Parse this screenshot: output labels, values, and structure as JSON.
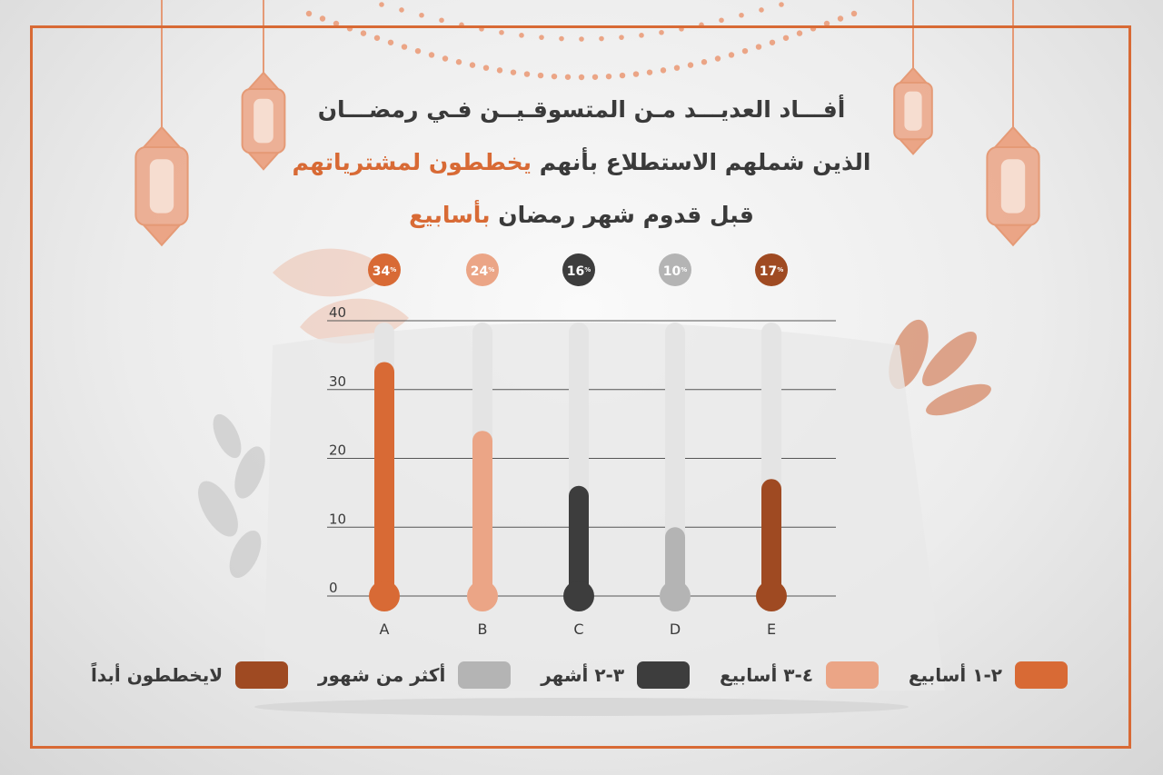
{
  "title": {
    "line1": "أفـــاد العديـــد مـن المتسوقـيــن فـي رمضـــان",
    "line2_plain": "الذين شملهم الاستطلاع بأنهم",
    "line2_highlight": "يخططون لمشترياتهم",
    "line3_plain": "قبل قدوم شهر رمضان",
    "line3_highlight": "بأسابيع"
  },
  "colors": {
    "accent": "#d86a35",
    "track": "#e4e4e4",
    "gridline": "#555555",
    "text": "#3a3a3a"
  },
  "chart_data": {
    "type": "bar",
    "categories": [
      "A",
      "B",
      "C",
      "D",
      "E"
    ],
    "values": [
      34,
      24,
      16,
      10,
      17
    ],
    "value_labels": [
      "34",
      "24",
      "16",
      "10",
      "17"
    ],
    "value_unit": "%",
    "bar_colors": [
      "#d86a35",
      "#eba586",
      "#3d3d3d",
      "#b4b4b4",
      "#9f4a22"
    ],
    "yticks": [
      0,
      10,
      20,
      30,
      40
    ],
    "ylim": [
      0,
      40
    ],
    "grid": true
  },
  "legend": [
    {
      "label": "٢-١ أسابيع",
      "color": "#d86a35"
    },
    {
      "label": "٤-٣ أسابيع",
      "color": "#eba586"
    },
    {
      "label": "٣-٢ أشهر",
      "color": "#3d3d3d"
    },
    {
      "label": "أكثر من شهور",
      "color": "#b4b4b4"
    },
    {
      "label": "لايخططون أبداً",
      "color": "#9f4a22"
    }
  ]
}
